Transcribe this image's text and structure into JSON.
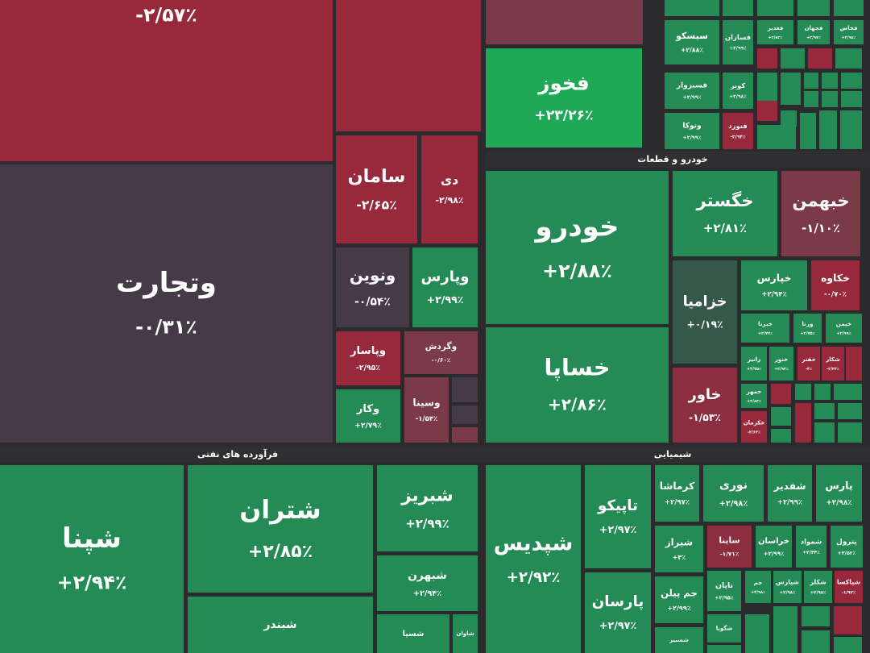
{
  "sections": [
    "خودرو و قطعات",
    "فرآورده های نفتی",
    "شیمیایی"
  ],
  "tiles": [
    {
      "change": "-۲/۵۷٪"
    },
    {
      "name": "فخوز",
      "change": "+۲۳/۲۶٪"
    },
    {
      "name": "وتجارت",
      "change": "-۰/۳۱٪"
    },
    {
      "name": "سامان",
      "change": "-۲/۶۵٪"
    },
    {
      "name": "دی",
      "change": "-۲/۹۸٪"
    },
    {
      "name": "ونوین",
      "change": "-۰/۵۴٪"
    },
    {
      "name": "وپارس",
      "change": "+۲/۹۹٪"
    },
    {
      "name": "وپاسار",
      "change": "-۲/۹۵٪"
    },
    {
      "name": "وگردش",
      "change": "-۰/۶۰٪"
    },
    {
      "name": "وکار",
      "change": "+۲/۷۹٪"
    },
    {
      "name": "وسینا",
      "change": "-۱/۵۴٪"
    },
    {
      "name": "خودرو",
      "change": "+۲/۸۸٪"
    },
    {
      "name": "خساپا",
      "change": "+۲/۸۶٪"
    },
    {
      "name": "خگستر",
      "change": "+۲/۸۱٪"
    },
    {
      "name": "خبهمن",
      "change": "-۱/۱۰٪"
    },
    {
      "name": "خزامیا",
      "change": "+۰/۱۹٪"
    },
    {
      "name": "خاور",
      "change": "-۱/۵۳٪"
    },
    {
      "name": "خپارس",
      "change": "+۲/۹۴٪"
    },
    {
      "name": "خکاوه",
      "change": "-۰/۷۰٪"
    },
    {
      "name": "خبرنا",
      "change": "+۲/۷۷٪"
    },
    {
      "name": "ورنا",
      "change": "+۲/۷۵٪"
    },
    {
      "name": "خیمن",
      "change": "+۲/۹۹٪"
    },
    {
      "name": "رانیز",
      "change": "+۲/۷۵٪"
    },
    {
      "name": "خنور",
      "change": "+۲/۹۴٪"
    },
    {
      "name": "خفنر",
      "change": "-۳٪"
    },
    {
      "name": "شکار",
      "change": "-۲/۴۳٪"
    },
    {
      "name": "خمهر",
      "change": "+۲/۸۴٪"
    },
    {
      "name": "خکرمان",
      "change": "-۲/۶۴٪"
    },
    {
      "name": "سیسکو",
      "change": "+۲/۸۸٪"
    },
    {
      "name": "فسازان",
      "change": "+۲/۹۹٪"
    },
    {
      "name": "فغدیر",
      "change": "+۲/۸۴٪"
    },
    {
      "name": "فجهان",
      "change": "+۲/۹۷٪"
    },
    {
      "name": "فخاس",
      "change": "+۲/۹۸٪"
    },
    {
      "name": "فسبزوار",
      "change": "+۲/۹۹٪"
    },
    {
      "name": "کویر",
      "change": "+۲/۹۸٪"
    },
    {
      "name": "ونوکا",
      "change": "+۲/۹۹٪"
    },
    {
      "name": "فنورد",
      "change": "-۲/۹۴٪"
    },
    {
      "name": "شپنا",
      "change": "+۲/۹۴٪"
    },
    {
      "name": "شتران",
      "change": "+۲/۸۵٪"
    },
    {
      "name": "شبندر"
    },
    {
      "name": "شبریز",
      "change": "+۲/۹۹٪"
    },
    {
      "name": "شبهرن",
      "change": "+۲/۹۴٪"
    },
    {
      "name": "شسپا"
    },
    {
      "name": "شاوان"
    },
    {
      "name": "شپدیس",
      "change": "+۲/۹۲٪"
    },
    {
      "name": "تاپیکو",
      "change": "+۲/۹۷٪"
    },
    {
      "name": "پارسان",
      "change": "+۲/۹۷٪"
    },
    {
      "name": "کرماشا",
      "change": "+۲/۹۷٪"
    },
    {
      "name": "نوری",
      "change": "+۲/۹۸٪"
    },
    {
      "name": "شفدیر",
      "change": "+۲/۹۹٪"
    },
    {
      "name": "پارس",
      "change": "+۲/۹۸٪"
    },
    {
      "name": "شیراز",
      "change": "+۳٪"
    },
    {
      "name": "ساینا",
      "change": "-۱/۷۱٪"
    },
    {
      "name": "خراسان",
      "change": "+۲/۹۹٪"
    },
    {
      "name": "شمواد",
      "change": "+۲/۴۴٪"
    },
    {
      "name": "پترول",
      "change": "+۲/۵۲٪"
    },
    {
      "name": "جم پیلن",
      "change": "+۲/۹۹٪"
    },
    {
      "name": "شصبیر"
    },
    {
      "name": "تاپان",
      "change": "+۲/۹۵٪"
    },
    {
      "name": "جم",
      "change": "+۲/۹۸٪"
    },
    {
      "name": "شپارس",
      "change": "+۲/۹۸٪"
    },
    {
      "name": "شکلر",
      "change": "+۲/۹۸٪"
    },
    {
      "name": "شپاکسا",
      "change": "-۱/۹۲٪"
    },
    {
      "name": "شگویا"
    }
  ]
}
